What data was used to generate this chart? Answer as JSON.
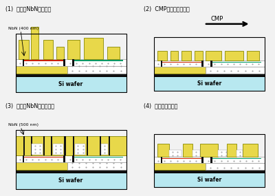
{
  "panel_titles": [
    "(1)  配線用NbN膜の堆積",
    "(2)  CMPによる平坦加工",
    "(3)  配線用NbN膜の再堆積",
    "(4)  配線形状の決定"
  ],
  "label1": "NbN (400 nm)",
  "label3": "NbN (500 nm)",
  "cmp_label": "CMP",
  "si_wafer_label": "Si wafer",
  "colors": {
    "bg": "#f2f2f2",
    "si_wafer": "#b8e8f0",
    "yellow": "#e8d84a",
    "yellow_border": "#888800",
    "black": "#111111",
    "white": "#ffffff",
    "gray_dot": "#999999",
    "red": "#cc2200",
    "green": "#009966",
    "border": "#333333"
  }
}
